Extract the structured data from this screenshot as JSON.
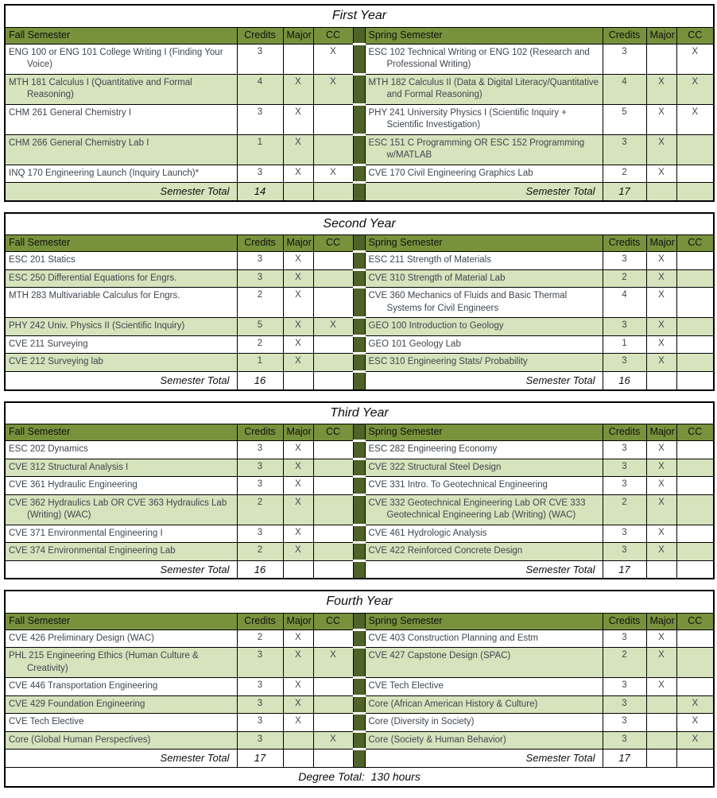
{
  "labels": {
    "fall_header": "Fall Semester",
    "spring_header": "Spring Semester",
    "credits": "Credits",
    "major": "Major",
    "cc": "CC",
    "semester_total": "Semester Total"
  },
  "footer": {
    "degree_total": "Degree Total:  130 hours"
  },
  "colors": {
    "header_green": "#78923c",
    "band_green": "#d6e3bc",
    "divider_green": "#4f6228",
    "body_text": "#3f474f"
  },
  "years": [
    {
      "title": "First Year",
      "fall_total": "14",
      "spring_total": "17",
      "rows": [
        {
          "fall": {
            "name": "ENG 100 or ENG 101 College Writing I (Finding Your Voice)",
            "credits": "3",
            "major": "",
            "cc": "X"
          },
          "spring": {
            "name": "ESC 102 Technical Writing or ENG 102 (Research and Professional Writing)",
            "credits": "3",
            "major": "",
            "cc": "X"
          }
        },
        {
          "fall": {
            "name": "MTH 181 Calculus I (Quantitative and Formal Reasoning)",
            "credits": "4",
            "major": "X",
            "cc": "X"
          },
          "spring": {
            "name": "MTH 182 Calculus II (Data & Digital Literacy/Quantitative and Formal Reasoning)",
            "credits": "4",
            "major": "X",
            "cc": "X"
          }
        },
        {
          "fall": {
            "name": "CHM 261 General Chemistry I",
            "credits": "3",
            "major": "X",
            "cc": ""
          },
          "spring": {
            "name": "PHY 241 University Physics I (Scientific Inquiry + Scientific Investigation)",
            "credits": "5",
            "major": "X",
            "cc": "X"
          }
        },
        {
          "fall": {
            "name": "CHM 266 General Chemistry Lab I",
            "credits": "1",
            "major": "X",
            "cc": ""
          },
          "spring": {
            "name": "ESC 151 C Programming OR ESC 152 Programming w/MATLAB",
            "credits": "3",
            "major": "X",
            "cc": ""
          }
        },
        {
          "fall": {
            "name": "INQ 170 Engineering Launch (Inquiry Launch)*",
            "credits": "3",
            "major": "X",
            "cc": "X"
          },
          "spring": {
            "name": "CVE 170 Civil Engineering Graphics Lab",
            "credits": "2",
            "major": "X",
            "cc": ""
          }
        }
      ]
    },
    {
      "title": "Second Year",
      "fall_total": "16",
      "spring_total": "16",
      "rows": [
        {
          "fall": {
            "name": "ESC 201 Statics",
            "credits": "3",
            "major": "X",
            "cc": ""
          },
          "spring": {
            "name": "ESC 211 Strength of Materials",
            "credits": "3",
            "major": "X",
            "cc": ""
          }
        },
        {
          "fall": {
            "name": "ESC 250 Differential Equations for Engrs.",
            "credits": "3",
            "major": "X",
            "cc": ""
          },
          "spring": {
            "name": "CVE 310 Strength of Material Lab",
            "credits": "2",
            "major": "X",
            "cc": ""
          }
        },
        {
          "fall": {
            "name": "MTH 283 Multivariable Calculus for Engrs.",
            "credits": "2",
            "major": "X",
            "cc": ""
          },
          "spring": {
            "name": "CVE 360 Mechanics of Fluids and Basic Thermal Systems for Civil Engineers",
            "credits": "4",
            "major": "X",
            "cc": ""
          }
        },
        {
          "fall": {
            "name": "PHY 242 Univ. Physics II (Scientific Inquiry)",
            "credits": "5",
            "major": "X",
            "cc": "X"
          },
          "spring": {
            "name": "GEO 100 Introduction to Geology",
            "credits": "3",
            "major": "X",
            "cc": ""
          }
        },
        {
          "fall": {
            "name": "CVE 211 Surveying",
            "credits": "2",
            "major": "X",
            "cc": ""
          },
          "spring": {
            "name": "GEO 101 Geology Lab",
            "credits": "1",
            "major": "X",
            "cc": ""
          }
        },
        {
          "fall": {
            "name": "CVE 212 Surveying lab",
            "credits": "1",
            "major": "X",
            "cc": ""
          },
          "spring": {
            "name": "ESC 310 Engineering Stats/ Probability",
            "credits": "3",
            "major": "X",
            "cc": ""
          }
        }
      ]
    },
    {
      "title": "Third Year",
      "fall_total": "16",
      "spring_total": "17",
      "rows": [
        {
          "fall": {
            "name": "ESC 202 Dynamics",
            "credits": "3",
            "major": "X",
            "cc": ""
          },
          "spring": {
            "name": "ESC 282 Engineering Economy",
            "credits": "3",
            "major": "X",
            "cc": ""
          }
        },
        {
          "fall": {
            "name": "CVE 312 Structural Analysis I",
            "credits": "3",
            "major": "X",
            "cc": ""
          },
          "spring": {
            "name": "CVE 322 Structural Steel Design",
            "credits": "3",
            "major": "X",
            "cc": ""
          }
        },
        {
          "fall": {
            "name": "CVE 361 Hydraulic Engineering",
            "credits": "3",
            "major": "X",
            "cc": ""
          },
          "spring": {
            "name": "CVE 331 Intro. To Geotechnical Engineering",
            "credits": "3",
            "major": "X",
            "cc": ""
          }
        },
        {
          "fall": {
            "name": "CVE 362 Hydraulics Lab OR CVE 363 Hydraulics Lab (Writing) (WAC)",
            "credits": "2",
            "major": "X",
            "cc": ""
          },
          "spring": {
            "name": "CVE 332 Geotechnical Engineering Lab OR CVE 333 Geotechnical Engineering Lab (Writing) (WAC)",
            "credits": "2",
            "major": "X",
            "cc": ""
          }
        },
        {
          "fall": {
            "name": "CVE 371 Environmental Engineering I",
            "credits": "3",
            "major": "X",
            "cc": ""
          },
          "spring": {
            "name": "CVE 461 Hydrologic Analysis",
            "credits": "3",
            "major": "X",
            "cc": ""
          }
        },
        {
          "fall": {
            "name": "CVE 374 Environmental Engineering Lab",
            "credits": "2",
            "major": "X",
            "cc": ""
          },
          "spring": {
            "name": "CVE 422 Reinforced Concrete Design",
            "credits": "3",
            "major": "X",
            "cc": ""
          }
        }
      ]
    },
    {
      "title": "Fourth Year",
      "fall_total": "17",
      "spring_total": "17",
      "rows": [
        {
          "fall": {
            "name": "CVE 426 Preliminary Design (WAC)",
            "credits": "2",
            "major": "X",
            "cc": ""
          },
          "spring": {
            "name": "CVE 403 Construction Planning and Estm",
            "credits": "3",
            "major": "X",
            "cc": ""
          }
        },
        {
          "fall": {
            "name": "PHL 215 Engineering Ethics (Human Culture & Creativity)",
            "credits": "3",
            "major": "X",
            "cc": "X"
          },
          "spring": {
            "name": "CVE 427 Capstone Design (SPAC)",
            "credits": "2",
            "major": "X",
            "cc": ""
          }
        },
        {
          "fall": {
            "name": "CVE 446 Transportation Engineering",
            "credits": "3",
            "major": "X",
            "cc": ""
          },
          "spring": {
            "name": "CVE Tech Elective",
            "credits": "3",
            "major": "X",
            "cc": ""
          }
        },
        {
          "fall": {
            "name": "CVE 429 Foundation Engineering",
            "credits": "3",
            "major": "X",
            "cc": ""
          },
          "spring": {
            "name": "Core (African American History & Culture)",
            "credits": "3",
            "major": "",
            "cc": "X"
          }
        },
        {
          "fall": {
            "name": "CVE Tech Elective",
            "credits": "3",
            "major": "X",
            "cc": ""
          },
          "spring": {
            "name": "Core (Diversity in Society)",
            "credits": "3",
            "major": "",
            "cc": "X"
          }
        },
        {
          "fall": {
            "name": "Core (Global Human Perspectives)",
            "credits": "3",
            "major": "",
            "cc": "X"
          },
          "spring": {
            "name": "Core (Society & Human Behavior)",
            "credits": "3",
            "major": "",
            "cc": "X"
          }
        }
      ]
    }
  ]
}
